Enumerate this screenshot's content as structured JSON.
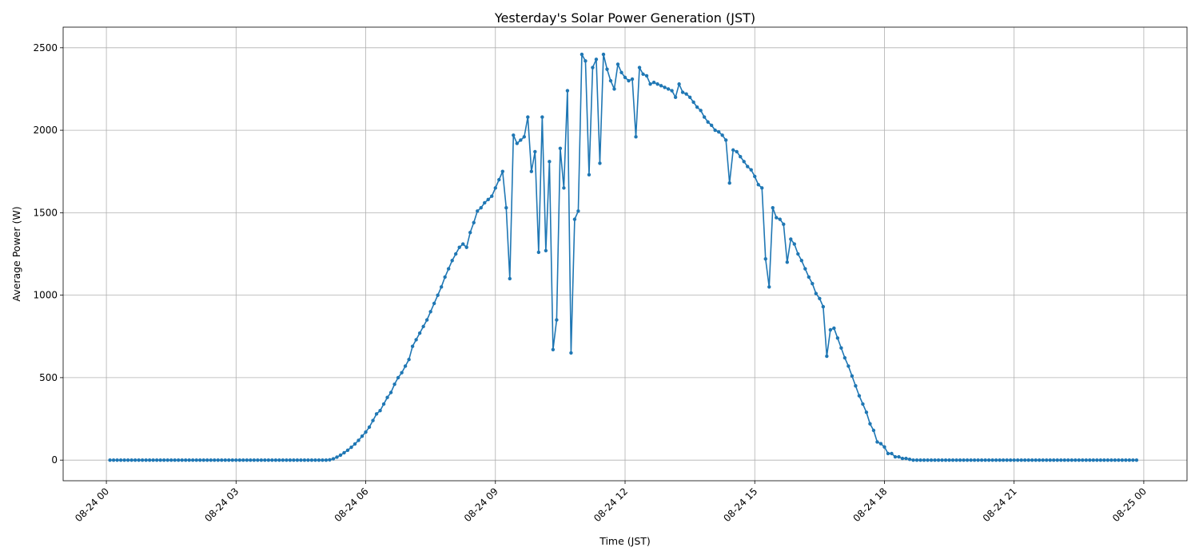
{
  "chart_data": {
    "type": "line",
    "title": "Yesterday's Solar Power Generation (JST)",
    "xlabel": "Time (JST)",
    "ylabel": "Average Power (W)",
    "grid": true,
    "legend": "none",
    "marker": "circle",
    "series_color": "#1f77b4",
    "grid_color": "#b0b0b0",
    "x_start": "2024-08-24 00:05",
    "x_step_minutes": 5,
    "x_labels": [
      "08-24 00",
      "08-24 03",
      "08-24 06",
      "08-24 09",
      "08-24 12",
      "08-24 15",
      "08-24 18",
      "08-24 21",
      "08-25 00"
    ],
    "x_label_rotation": -45,
    "xlim": [
      "2024-08-23 23:00",
      "2024-08-25 01:00"
    ],
    "ylim": [
      -125,
      2625
    ],
    "y_ticks": [
      0,
      500,
      1000,
      1500,
      2000,
      2500
    ],
    "y": [
      0,
      0,
      0,
      0,
      0,
      0,
      0,
      0,
      0,
      0,
      0,
      0,
      0,
      0,
      0,
      0,
      0,
      0,
      0,
      0,
      0,
      0,
      0,
      0,
      0,
      0,
      0,
      0,
      0,
      0,
      0,
      0,
      0,
      0,
      0,
      0,
      0,
      0,
      0,
      0,
      0,
      0,
      0,
      0,
      0,
      0,
      0,
      0,
      0,
      0,
      0,
      0,
      0,
      0,
      0,
      0,
      0,
      0,
      0,
      0,
      0,
      2,
      8,
      18,
      30,
      45,
      60,
      78,
      98,
      120,
      145,
      170,
      200,
      240,
      280,
      300,
      340,
      380,
      410,
      460,
      500,
      530,
      570,
      610,
      690,
      730,
      770,
      810,
      850,
      900,
      950,
      1000,
      1050,
      1110,
      1160,
      1210,
      1250,
      1290,
      1310,
      1290,
      1380,
      1440,
      1510,
      1530,
      1560,
      1580,
      1600,
      1650,
      1700,
      1750,
      1530,
      1100,
      1970,
      1920,
      1940,
      1960,
      2080,
      1750,
      1870,
      1260,
      2080,
      1270,
      1810,
      670,
      850,
      1890,
      1650,
      2240,
      650,
      1460,
      1510,
      2460,
      2420,
      1730,
      2380,
      2430,
      1800,
      2460,
      2370,
      2300,
      2250,
      2400,
      2350,
      2320,
      2300,
      2310,
      1960,
      2380,
      2340,
      2330,
      2280,
      2290,
      2280,
      2270,
      2260,
      2250,
      2240,
      2200,
      2280,
      2230,
      2220,
      2200,
      2170,
      2140,
      2120,
      2080,
      2050,
      2030,
      2000,
      1990,
      1970,
      1940,
      1680,
      1880,
      1870,
      1840,
      1810,
      1780,
      1760,
      1720,
      1670,
      1650,
      1220,
      1050,
      1530,
      1470,
      1460,
      1430,
      1200,
      1340,
      1310,
      1250,
      1210,
      1160,
      1110,
      1070,
      1010,
      980,
      930,
      630,
      790,
      800,
      740,
      680,
      620,
      570,
      510,
      450,
      390,
      340,
      290,
      220,
      180,
      110,
      100,
      80,
      40,
      40,
      20,
      20,
      10,
      10,
      5,
      0,
      0,
      0,
      0,
      0,
      0,
      0,
      0,
      0,
      0,
      0,
      0,
      0,
      0,
      0,
      0,
      0,
      0,
      0,
      0,
      0,
      0,
      0,
      0,
      0,
      0,
      0,
      0,
      0,
      0,
      0,
      0,
      0,
      0,
      0,
      0,
      0,
      0,
      0,
      0,
      0,
      0,
      0,
      0,
      0,
      0,
      0,
      0,
      0,
      0,
      0,
      0,
      0,
      0,
      0,
      0,
      0,
      0,
      0,
      0,
      0,
      0,
      0
    ]
  }
}
